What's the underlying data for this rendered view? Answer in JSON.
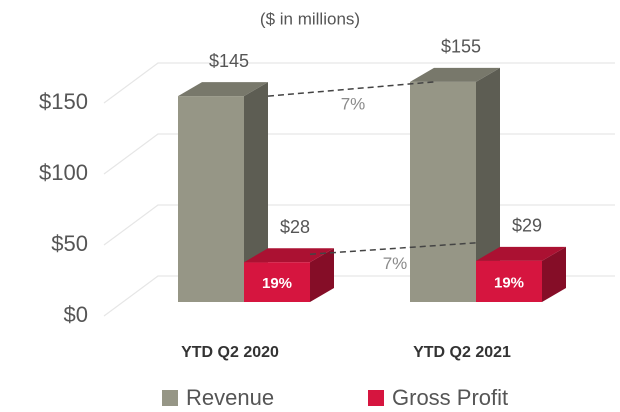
{
  "chart_data": {
    "type": "bar3d",
    "subtitle": "($ in millions)",
    "categories": [
      "YTD Q2 2020",
      "YTD Q2 2021"
    ],
    "series": [
      {
        "name": "Revenue",
        "color": "#969686",
        "values": [
          145,
          155
        ],
        "value_labels": [
          "$145",
          "$155"
        ]
      },
      {
        "name": "Gross Profit",
        "color": "#d6153f",
        "values": [
          28,
          29
        ],
        "value_labels": [
          "$28",
          "$29"
        ],
        "inner_labels": [
          "19%",
          "19%"
        ]
      }
    ],
    "growth_labels": [
      "7%",
      "7%"
    ],
    "ylim": [
      0,
      150
    ],
    "yticks": [
      {
        "value": 0,
        "label": "$0"
      },
      {
        "value": 50,
        "label": "$50"
      },
      {
        "value": 100,
        "label": "$100"
      },
      {
        "value": 150,
        "label": "$150"
      }
    ],
    "grid": true,
    "legend": "bottom"
  }
}
